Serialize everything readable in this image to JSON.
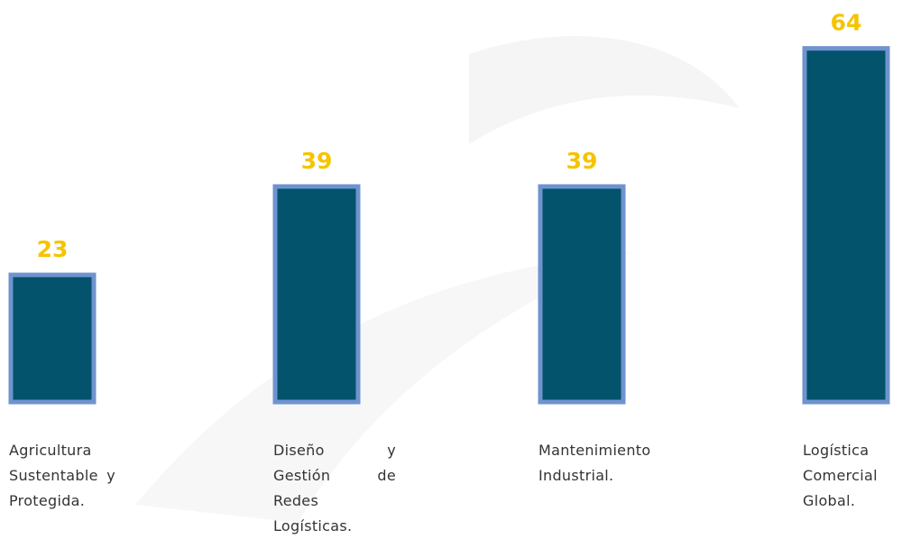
{
  "chart_data": {
    "type": "bar",
    "categories": [
      "Agricultura Sustentable y Protegida.",
      "Diseño y Gestión de Redes Logísticas.",
      "Mantenimiento Industrial.",
      "Logística Comercial Global."
    ],
    "values": [
      23,
      39,
      39,
      64
    ],
    "color": "#02536b",
    "edge_color": "#6f93cf",
    "label_color": "#f5c400"
  }
}
